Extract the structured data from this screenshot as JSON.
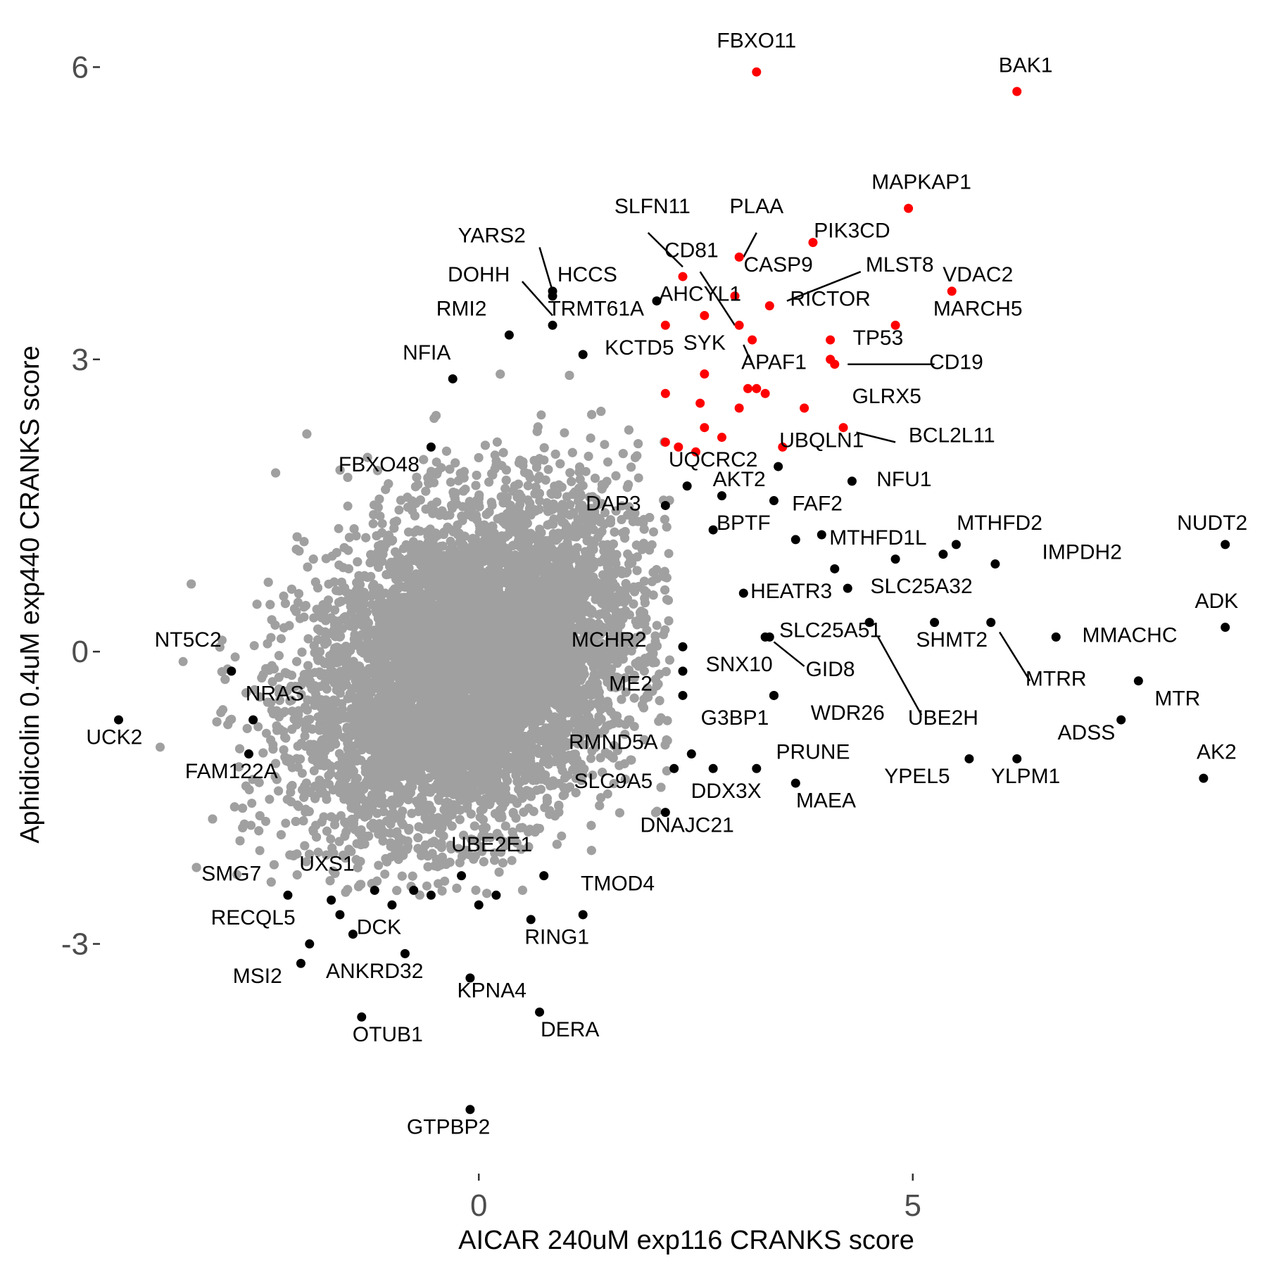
{
  "chart_data": {
    "type": "scatter",
    "xlabel": "AICAR 240uM exp116 CRANKS score",
    "ylabel": "Aphidicolin 0.4uM exp440 CRANKS score",
    "xlim": [
      -4.3,
      9.0
    ],
    "ylim": [
      -5.3,
      6.4
    ],
    "x_ticks": [
      {
        "value": 0,
        "label": "0"
      },
      {
        "value": 5,
        "label": "5"
      }
    ],
    "y_ticks": [
      {
        "value": -3,
        "label": "-3"
      },
      {
        "value": 0,
        "label": "0"
      },
      {
        "value": 3,
        "label": "3"
      },
      {
        "value": 6,
        "label": "6"
      }
    ],
    "grid": false,
    "legend": "none",
    "colors": {
      "background": "#gray",
      "hit": "#ff0000",
      "labeled": "#000000",
      "tick": "#4d4d4d"
    },
    "background_cloud": {
      "description_free": true,
      "n": 17000,
      "x_mean": -0.1,
      "y_mean": -0.15,
      "x_sd": 0.95,
      "y_sd": 0.85,
      "correlation": 0.3,
      "color": "#a0a0a0"
    },
    "series": [
      {
        "name": "",
        "color": "#ff0000",
        "points": [
          {
            "gene": "FBXO11",
            "x": 3.2,
            "y": 5.95
          },
          {
            "gene": "BAK1",
            "x": 6.2,
            "y": 5.75
          },
          {
            "gene": "MAPKAP1",
            "x": 4.95,
            "y": 4.55
          },
          {
            "gene": "PIK3CD",
            "x": 3.85,
            "y": 4.2
          },
          {
            "gene": "PLAA",
            "x": 3.0,
            "y": 4.05
          },
          {
            "gene": "SLFN11",
            "x": 2.35,
            "y": 3.85
          },
          {
            "gene": "VDAC2",
            "x": 5.45,
            "y": 3.7
          },
          {
            "gene": "CD81",
            "x": 2.95,
            "y": 3.65
          },
          {
            "gene": "MLST8",
            "x": 3.35,
            "y": 3.55
          },
          {
            "gene": "AHCYL1",
            "x": 2.6,
            "y": 3.45
          },
          {
            "gene": "MARCH5",
            "x": 4.8,
            "y": 3.35
          },
          {
            "gene": "RICTOR",
            "x": 3.0,
            "y": 3.35
          },
          {
            "gene": "",
            "x": 2.15,
            "y": 3.35
          },
          {
            "gene": "",
            "x": 3.15,
            "y": 3.2
          },
          {
            "gene": "TP53",
            "x": 4.05,
            "y": 3.2
          },
          {
            "gene": "CD19",
            "x": 4.1,
            "y": 2.95
          },
          {
            "gene": "",
            "x": 4.05,
            "y": 3.0
          },
          {
            "gene": "SYK",
            "x": 2.6,
            "y": 2.85
          },
          {
            "gene": "APAF1",
            "x": 3.1,
            "y": 2.7
          },
          {
            "gene": "",
            "x": 3.2,
            "y": 2.7
          },
          {
            "gene": "",
            "x": 3.3,
            "y": 2.65
          },
          {
            "gene": "",
            "x": 2.15,
            "y": 2.65
          },
          {
            "gene": "",
            "x": 2.55,
            "y": 2.55
          },
          {
            "gene": "",
            "x": 3.0,
            "y": 2.5
          },
          {
            "gene": "",
            "x": 3.75,
            "y": 2.5
          },
          {
            "gene": "",
            "x": 2.6,
            "y": 2.3
          },
          {
            "gene": "GLRX5",
            "x": 4.2,
            "y": 2.3
          },
          {
            "gene": "",
            "x": 2.8,
            "y": 2.2
          },
          {
            "gene": "",
            "x": 2.15,
            "y": 2.15
          },
          {
            "gene": "",
            "x": 2.3,
            "y": 2.1
          },
          {
            "gene": "",
            "x": 2.5,
            "y": 2.05
          },
          {
            "gene": "BCL2L11",
            "x": 3.5,
            "y": 2.1
          }
        ]
      },
      {
        "name": "",
        "color": "#000000",
        "points": [
          {
            "gene": "HCCS",
            "x": 0.85,
            "y": 3.65
          },
          {
            "gene": "YARS2",
            "x": 0.85,
            "y": 3.7
          },
          {
            "gene": "TRMT61A",
            "x": 2.05,
            "y": 3.6
          },
          {
            "gene": "DOHH",
            "x": 0.85,
            "y": 3.35
          },
          {
            "gene": "RMI2",
            "x": 0.35,
            "y": 3.25
          },
          {
            "gene": "KCTD5",
            "x": 1.2,
            "y": 3.05
          },
          {
            "gene": "NFIA",
            "x": -0.3,
            "y": 2.8
          },
          {
            "gene": "FBXO48",
            "x": -0.55,
            "y": 2.1
          },
          {
            "gene": "UBQLN1",
            "x": 3.45,
            "y": 1.9
          },
          {
            "gene": "UQCRC2",
            "x": 2.4,
            "y": 1.7
          },
          {
            "gene": "AKT2",
            "x": 2.8,
            "y": 1.6
          },
          {
            "gene": "NFU1",
            "x": 4.3,
            "y": 1.75
          },
          {
            "gene": "DAP3",
            "x": 2.15,
            "y": 1.5
          },
          {
            "gene": "FAF2",
            "x": 3.4,
            "y": 1.55
          },
          {
            "gene": "BPTF",
            "x": 2.7,
            "y": 1.25
          },
          {
            "gene": "MTHFD2",
            "x": 5.5,
            "y": 1.1
          },
          {
            "gene": "MTHFD1L",
            "x": 3.95,
            "y": 1.2
          },
          {
            "gene": "NUDT2",
            "x": 8.6,
            "y": 1.1
          },
          {
            "gene": "IMPDH2",
            "x": 5.95,
            "y": 0.9
          },
          {
            "gene": "",
            "x": 5.35,
            "y": 1.0
          },
          {
            "gene": "",
            "x": 4.8,
            "y": 0.95
          },
          {
            "gene": "",
            "x": 3.65,
            "y": 1.15
          },
          {
            "gene": "",
            "x": 4.1,
            "y": 0.85
          },
          {
            "gene": "SLC25A32",
            "x": 4.25,
            "y": 0.65
          },
          {
            "gene": "HEATR3",
            "x": 3.05,
            "y": 0.6
          },
          {
            "gene": "ADK",
            "x": 8.6,
            "y": 0.25
          },
          {
            "gene": "SHMT2",
            "x": 5.25,
            "y": 0.3
          },
          {
            "gene": "MMACHC",
            "x": 6.65,
            "y": 0.15
          },
          {
            "gene": "MTRR",
            "x": 5.9,
            "y": 0.3
          },
          {
            "gene": "SLC25A51",
            "x": 3.3,
            "y": 0.15
          },
          {
            "gene": "GID8",
            "x": 3.35,
            "y": 0.15
          },
          {
            "gene": "UBE2H",
            "x": 4.5,
            "y": 0.3
          },
          {
            "gene": "MCHR2",
            "x": 2.35,
            "y": 0.05
          },
          {
            "gene": "SNX10",
            "x": 2.35,
            "y": -0.2
          },
          {
            "gene": "MTR",
            "x": 7.6,
            "y": -0.3
          },
          {
            "gene": "ME2",
            "x": 2.35,
            "y": -0.45
          },
          {
            "gene": "G3BP1",
            "x": 3.4,
            "y": -0.45
          },
          {
            "gene": "WDR26",
            "x": 3.4,
            "y": -0.45
          },
          {
            "gene": "ADSS",
            "x": 7.4,
            "y": -0.7
          },
          {
            "gene": "AK2",
            "x": 8.35,
            "y": -1.3
          },
          {
            "gene": "YPEL5",
            "x": 5.65,
            "y": -1.1
          },
          {
            "gene": "YLPM1",
            "x": 6.2,
            "y": -1.1
          },
          {
            "gene": "RMND5A",
            "x": 2.45,
            "y": -1.05
          },
          {
            "gene": "PRUNE",
            "x": 3.2,
            "y": -1.2
          },
          {
            "gene": "DDX3X",
            "x": 2.7,
            "y": -1.2
          },
          {
            "gene": "MAEA",
            "x": 3.65,
            "y": -1.35
          },
          {
            "gene": "SLC9A5",
            "x": 2.25,
            "y": -1.2
          },
          {
            "gene": "DNAJC21",
            "x": 2.15,
            "y": -1.65
          },
          {
            "gene": "NT5C2",
            "x": -2.85,
            "y": -0.2
          },
          {
            "gene": "NRAS",
            "x": -2.6,
            "y": -0.7
          },
          {
            "gene": "UCK2",
            "x": -4.15,
            "y": -0.7
          },
          {
            "gene": "FAM122A",
            "x": -2.65,
            "y": -1.05
          },
          {
            "gene": "UBE2E1",
            "x": -0.2,
            "y": -2.3
          },
          {
            "gene": "UXS1",
            "x": -1.7,
            "y": -2.55
          },
          {
            "gene": "SMG7",
            "x": -2.2,
            "y": -2.5
          },
          {
            "gene": "TMOD4",
            "x": 0.75,
            "y": -2.3
          },
          {
            "gene": "RECQL5",
            "x": -1.6,
            "y": -2.7
          },
          {
            "gene": "DCK",
            "x": -1.45,
            "y": -2.9
          },
          {
            "gene": "RING1",
            "x": 0.6,
            "y": -2.75
          },
          {
            "gene": "",
            "x": 1.2,
            "y": -2.7
          },
          {
            "gene": "",
            "x": -1.2,
            "y": -2.45
          },
          {
            "gene": "",
            "x": -1.0,
            "y": -2.6
          },
          {
            "gene": "",
            "x": -0.75,
            "y": -2.45
          },
          {
            "gene": "",
            "x": -0.55,
            "y": -2.5
          },
          {
            "gene": "",
            "x": 0.0,
            "y": -2.6
          },
          {
            "gene": "",
            "x": 0.2,
            "y": -2.5
          },
          {
            "gene": "MSI2",
            "x": -2.05,
            "y": -3.2
          },
          {
            "gene": "ANKRD32",
            "x": -0.85,
            "y": -3.1
          },
          {
            "gene": "",
            "x": -1.95,
            "y": -3.0
          },
          {
            "gene": "KPNA4",
            "x": -0.1,
            "y": -3.35
          },
          {
            "gene": "DERA",
            "x": 0.7,
            "y": -3.7
          },
          {
            "gene": "OTUB1",
            "x": -1.35,
            "y": -3.75
          },
          {
            "gene": "GTPBP2",
            "x": -0.1,
            "y": -4.7
          }
        ]
      }
    ],
    "labels": [
      {
        "text": "FBXO11",
        "x": 3.2,
        "y": 6.2
      },
      {
        "text": "BAK1",
        "x": 6.3,
        "y": 5.95
      },
      {
        "text": "MAPKAP1",
        "x": 5.1,
        "y": 4.75
      },
      {
        "text": "SLFN11",
        "x": 2.0,
        "y": 4.5
      },
      {
        "text": "PLAA",
        "x": 3.2,
        "y": 4.5
      },
      {
        "text": "PIK3CD",
        "x": 4.3,
        "y": 4.25
      },
      {
        "text": "YARS2",
        "x": 0.15,
        "y": 4.2
      },
      {
        "text": "CD81",
        "x": 2.45,
        "y": 4.05
      },
      {
        "text": "CASP9",
        "x": 3.45,
        "y": 3.9
      },
      {
        "text": "MLST8",
        "x": 4.85,
        "y": 3.9
      },
      {
        "text": "VDAC2",
        "x": 5.75,
        "y": 3.8
      },
      {
        "text": "HCCS",
        "x": 1.25,
        "y": 3.8
      },
      {
        "text": "DOHH",
        "x": 0.0,
        "y": 3.8
      },
      {
        "text": "AHCYL1",
        "x": 2.55,
        "y": 3.6
      },
      {
        "text": "RICTOR",
        "x": 4.05,
        "y": 3.55
      },
      {
        "text": "TRMT61A",
        "x": 1.35,
        "y": 3.45
      },
      {
        "text": "MARCH5",
        "x": 5.75,
        "y": 3.45
      },
      {
        "text": "RMI2",
        "x": -0.2,
        "y": 3.45
      },
      {
        "text": "TP53",
        "x": 4.6,
        "y": 3.15
      },
      {
        "text": "KCTD5",
        "x": 1.85,
        "y": 3.05
      },
      {
        "text": "SYK",
        "x": 2.6,
        "y": 3.1
      },
      {
        "text": "NFIA",
        "x": -0.6,
        "y": 3.0
      },
      {
        "text": "APAF1",
        "x": 3.4,
        "y": 2.9
      },
      {
        "text": "CD19",
        "x": 5.5,
        "y": 2.9
      },
      {
        "text": "GLRX5",
        "x": 4.7,
        "y": 2.55
      },
      {
        "text": "BCL2L11",
        "x": 5.45,
        "y": 2.15
      },
      {
        "text": "UBQLN1",
        "x": 3.95,
        "y": 2.1
      },
      {
        "text": "UQCRC2",
        "x": 2.7,
        "y": 1.9
      },
      {
        "text": "FBXO48",
        "x": -1.15,
        "y": 1.85
      },
      {
        "text": "AKT2",
        "x": 3.0,
        "y": 1.7
      },
      {
        "text": "NFU1",
        "x": 4.9,
        "y": 1.7
      },
      {
        "text": "DAP3",
        "x": 1.55,
        "y": 1.45
      },
      {
        "text": "FAF2",
        "x": 3.9,
        "y": 1.45
      },
      {
        "text": "BPTF",
        "x": 3.05,
        "y": 1.25
      },
      {
        "text": "MTHFD2",
        "x": 6.0,
        "y": 1.25
      },
      {
        "text": "NUDT2",
        "x": 8.45,
        "y": 1.25
      },
      {
        "text": "MTHFD1L",
        "x": 4.6,
        "y": 1.1
      },
      {
        "text": "IMPDH2",
        "x": 6.95,
        "y": 0.95
      },
      {
        "text": "HEATR3",
        "x": 3.6,
        "y": 0.55
      },
      {
        "text": "SLC25A32",
        "x": 5.1,
        "y": 0.6
      },
      {
        "text": "ADK",
        "x": 8.5,
        "y": 0.45
      },
      {
        "text": "SLC25A51",
        "x": 4.05,
        "y": 0.15
      },
      {
        "text": "MCHR2",
        "x": 1.5,
        "y": 0.05
      },
      {
        "text": "SHMT2",
        "x": 5.45,
        "y": 0.05
      },
      {
        "text": "MMACHC",
        "x": 7.5,
        "y": 0.1
      },
      {
        "text": "SNX10",
        "x": 3.0,
        "y": -0.2
      },
      {
        "text": "GID8",
        "x": 4.05,
        "y": -0.25
      },
      {
        "text": "MTRR",
        "x": 6.65,
        "y": -0.35
      },
      {
        "text": "ME2",
        "x": 1.75,
        "y": -0.4
      },
      {
        "text": "MTR",
        "x": 8.05,
        "y": -0.55
      },
      {
        "text": "G3BP1",
        "x": 2.95,
        "y": -0.75
      },
      {
        "text": "WDR26",
        "x": 4.25,
        "y": -0.7
      },
      {
        "text": "UBE2H",
        "x": 5.35,
        "y": -0.75
      },
      {
        "text": "ADSS",
        "x": 7.0,
        "y": -0.9
      },
      {
        "text": "RMND5A",
        "x": 1.55,
        "y": -1.0
      },
      {
        "text": "PRUNE",
        "x": 3.85,
        "y": -1.1
      },
      {
        "text": "AK2",
        "x": 8.5,
        "y": -1.1
      },
      {
        "text": "YPEL5",
        "x": 5.05,
        "y": -1.35
      },
      {
        "text": "YLPM1",
        "x": 6.3,
        "y": -1.35
      },
      {
        "text": "SLC9A5",
        "x": 1.55,
        "y": -1.4
      },
      {
        "text": "DDX3X",
        "x": 2.85,
        "y": -1.5
      },
      {
        "text": "MAEA",
        "x": 4.0,
        "y": -1.6
      },
      {
        "text": "DNAJC21",
        "x": 2.4,
        "y": -1.85
      },
      {
        "text": "NT5C2",
        "x": -3.35,
        "y": 0.05
      },
      {
        "text": "NRAS",
        "x": -2.35,
        "y": -0.5
      },
      {
        "text": "UCK2",
        "x": -4.2,
        "y": -0.95
      },
      {
        "text": "FAM122A",
        "x": -2.85,
        "y": -1.3
      },
      {
        "text": "UBE2E1",
        "x": 0.15,
        "y": -2.05
      },
      {
        "text": "UXS1",
        "x": -1.75,
        "y": -2.25
      },
      {
        "text": "SMG7",
        "x": -2.85,
        "y": -2.35
      },
      {
        "text": "TMOD4",
        "x": 1.6,
        "y": -2.45
      },
      {
        "text": "RECQL5",
        "x": -2.6,
        "y": -2.8
      },
      {
        "text": "DCK",
        "x": -1.15,
        "y": -2.9
      },
      {
        "text": "RING1",
        "x": 0.9,
        "y": -3.0
      },
      {
        "text": "MSI2",
        "x": -2.55,
        "y": -3.4
      },
      {
        "text": "ANKRD32",
        "x": -1.2,
        "y": -3.35
      },
      {
        "text": "KPNA4",
        "x": 0.15,
        "y": -3.55
      },
      {
        "text": "DERA",
        "x": 1.05,
        "y": -3.95
      },
      {
        "text": "OTUB1",
        "x": -1.05,
        "y": -4.0
      },
      {
        "text": "GTPBP2",
        "x": -0.35,
        "y": -4.95
      }
    ],
    "leaders": [
      {
        "x1": 1.95,
        "y1": 4.3,
        "x2": 2.35,
        "y2": 3.95
      },
      {
        "x1": 3.2,
        "y1": 4.3,
        "x2": 3.05,
        "y2": 4.05
      },
      {
        "x1": 0.7,
        "y1": 4.15,
        "x2": 0.85,
        "y2": 3.7
      },
      {
        "x1": 2.55,
        "y1": 3.9,
        "x2": 2.95,
        "y2": 3.35
      },
      {
        "x1": 4.4,
        "y1": 3.9,
        "x2": 3.55,
        "y2": 3.6
      },
      {
        "x1": 0.5,
        "y1": 3.8,
        "x2": 0.85,
        "y2": 3.45
      },
      {
        "x1": 3.05,
        "y1": 3.15,
        "x2": 3.15,
        "y2": 2.95
      },
      {
        "x1": 4.25,
        "y1": 2.95,
        "x2": 5.25,
        "y2": 2.95
      },
      {
        "x1": 4.35,
        "y1": 2.25,
        "x2": 4.8,
        "y2": 2.15
      },
      {
        "x1": 3.4,
        "y1": 0.1,
        "x2": 3.75,
        "y2": -0.15
      },
      {
        "x1": 4.6,
        "y1": 0.15,
        "x2": 5.1,
        "y2": -0.65
      },
      {
        "x1": 6.0,
        "y1": 0.2,
        "x2": 6.35,
        "y2": -0.3
      }
    ]
  }
}
